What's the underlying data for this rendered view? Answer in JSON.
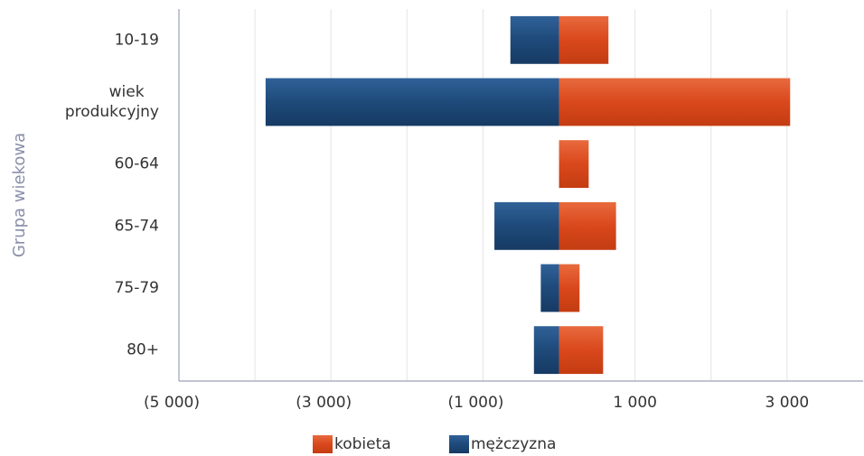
{
  "chart_data": {
    "type": "diverging_bar",
    "y_label": "Grupa wiekowa",
    "categories": [
      "10-19",
      "wiek produkcyjny",
      "60-64",
      "65-74",
      "75-79",
      "80+"
    ],
    "series": [
      {
        "name": "kobieta",
        "color": "#d9481c",
        "values": [
          650,
          3040,
          390,
          750,
          270,
          580
        ]
      },
      {
        "name": "mężczyzna",
        "color": "#1e4a7a",
        "values": [
          -640,
          -3860,
          0,
          -850,
          -240,
          -330
        ]
      }
    ],
    "xlim": [
      -5000,
      4000
    ],
    "xticks": [
      {
        "value": -5000,
        "label": "(5 000)"
      },
      {
        "value": -3000,
        "label": "(3 000)"
      },
      {
        "value": -1000,
        "label": "(1 000)"
      },
      {
        "value": 1000,
        "label": "1 000"
      },
      {
        "value": 3000,
        "label": "3 000"
      }
    ],
    "minor_xticks": [
      -4000,
      -2000,
      2000
    ],
    "grid": true,
    "legend": "bottom"
  }
}
